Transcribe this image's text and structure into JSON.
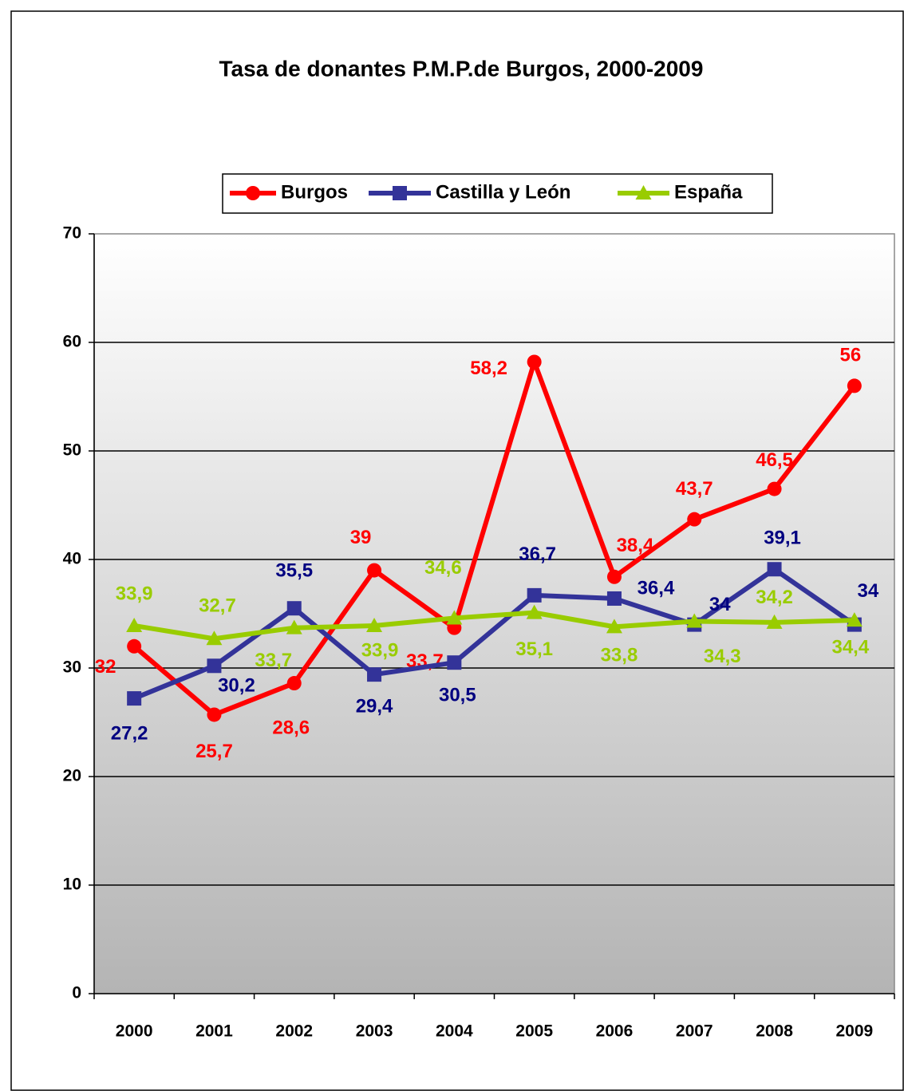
{
  "chart_data": {
    "type": "line",
    "title": "Tasa de donantes P.M.P.de Burgos, 2000-2009",
    "categories": [
      "2000",
      "2001",
      "2002",
      "2003",
      "2004",
      "2005",
      "2006",
      "2007",
      "2008",
      "2009"
    ],
    "series": [
      {
        "name": "Burgos",
        "color": "#ff0000",
        "marker": "circle",
        "values": [
          32,
          25.7,
          28.6,
          39,
          33.7,
          58.2,
          38.4,
          43.7,
          46.5,
          56
        ],
        "value_labels": [
          "32",
          "25,7",
          "28,6",
          "39",
          "33,7",
          "58,2",
          "38,4",
          "43,7",
          "46,5",
          "56"
        ]
      },
      {
        "name": "Castilla y León",
        "color": "#333399",
        "marker": "square",
        "values": [
          27.2,
          30.2,
          35.5,
          29.4,
          30.5,
          36.7,
          36.4,
          34,
          39.1,
          34
        ],
        "value_labels": [
          "27,2",
          "30,2",
          "35,5",
          "29,4",
          "30,5",
          "36,7",
          "36,4",
          "34",
          "39,1",
          "34"
        ]
      },
      {
        "name": "España",
        "color": "#99cc00",
        "marker": "triangle",
        "values": [
          33.9,
          32.7,
          33.7,
          33.9,
          34.6,
          35.1,
          33.8,
          34.3,
          34.2,
          34.4
        ],
        "value_labels": [
          "33,9",
          "32,7",
          "33,7",
          "33,9",
          "34,6",
          "35,1",
          "33,8",
          "34,3",
          "34,2",
          "34,4"
        ]
      }
    ],
    "ylim": [
      0,
      70
    ],
    "yticks": [
      0,
      10,
      20,
      30,
      40,
      50,
      60,
      70
    ],
    "grid": true,
    "legend": "top"
  }
}
